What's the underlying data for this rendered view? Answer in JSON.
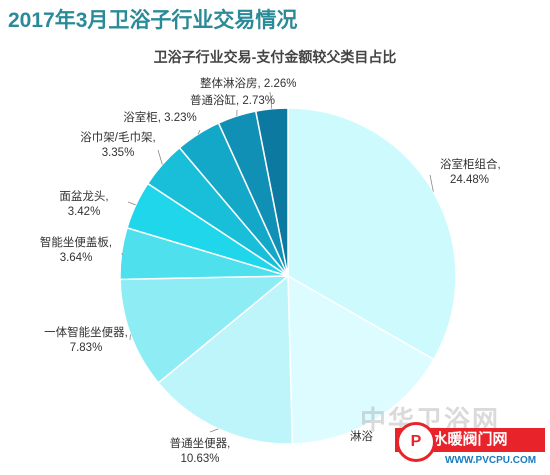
{
  "page": {
    "title": "2017年3月卫浴子行业交易情况"
  },
  "chart_data": {
    "type": "pie",
    "title": "卫浴子行业交易-支付金额较父类目占比",
    "slices": [
      {
        "label": "浴室柜组合",
        "value": 24.48,
        "value_text": "24.48%",
        "color": "#ccfafd"
      },
      {
        "label": "淋浴",
        "value": 12.0,
        "value_text": "",
        "color": "#dcfcff"
      },
      {
        "label": "普通坐便器",
        "value": 10.63,
        "value_text": "10.63%",
        "color": "#bdf5fa"
      },
      {
        "label": "一体智能坐便器",
        "value": 7.83,
        "value_text": "7.83%",
        "color": "#8eedf4"
      },
      {
        "label": "智能坐便盖板",
        "value": 3.64,
        "value_text": "3.64%",
        "color": "#4fe0ee"
      },
      {
        "label": "面盆龙头",
        "value": 3.42,
        "value_text": "3.42%",
        "color": "#20d6ea"
      },
      {
        "label": "浴巾架/毛巾架",
        "value": 3.35,
        "value_text": "3.35%",
        "color": "#19bfd8"
      },
      {
        "label": "浴室柜",
        "value": 3.23,
        "value_text": "3.23%",
        "color": "#14a8c8"
      },
      {
        "label": "普通浴缸",
        "value": 2.73,
        "value_text": "2.73%",
        "color": "#1090b5"
      },
      {
        "label": "整体淋浴房",
        "value": 2.26,
        "value_text": "2.26%",
        "color": "#0b79a0"
      }
    ]
  },
  "watermark": {
    "text": "中华卫浴网",
    "badge": "水暖阀门网",
    "url": "WWW.PVCPU.COM",
    "mark": "P"
  }
}
